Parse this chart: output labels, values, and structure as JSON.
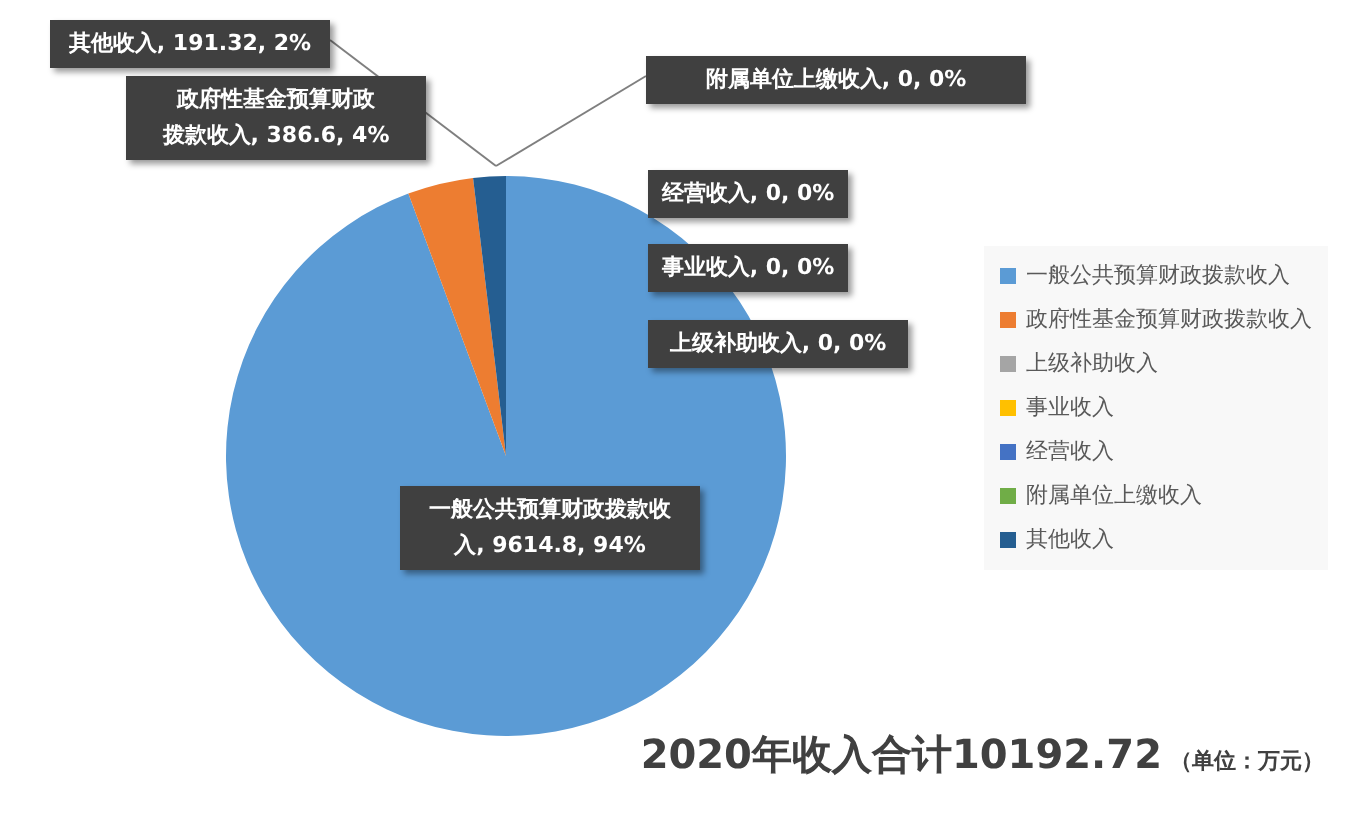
{
  "chart_data": {
    "type": "pie",
    "title": "2020年收入合计10192.72",
    "subtitle": "（单位：万元）",
    "categories": [
      "一般公共预算财政拨款收入",
      "政府性基金预算财政拨款收入",
      "上级补助收入",
      "事业收入",
      "经营收入",
      "附属单位上缴收入",
      "其他收入"
    ],
    "values": [
      9614.8,
      386.6,
      0,
      0,
      0,
      0,
      191.32
    ],
    "colors": [
      "#5b9bd5",
      "#ed7d31",
      "#a5a5a5",
      "#ffc000",
      "#4472c4",
      "#70ad47",
      "#255e91"
    ],
    "value_labels": [
      "一般公共预算财政拨款收入, 9614.8, 94%",
      "政府性基金预算财政拨款收入, 386.6, 4%",
      "上级补助收入, 0, 0%",
      "事业收入, 0, 0%",
      "经营收入, 0, 0%",
      "附属单位上缴收入, 0, 0%",
      "其他收入, 191.32, 2%"
    ],
    "legend": "right"
  }
}
